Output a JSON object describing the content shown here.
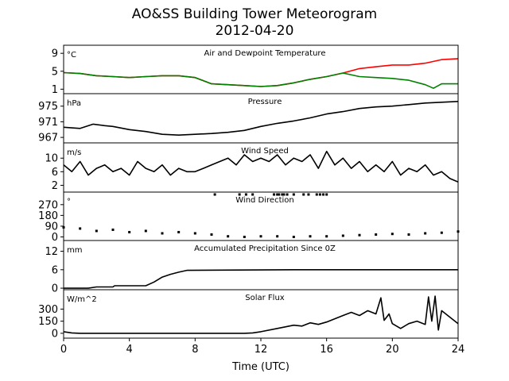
{
  "title": "AO&SS Building Tower Meteorogram",
  "subtitle": "2012-04-20",
  "xlabel": "Time (UTC)",
  "colors": {
    "temperature": "#ff0000",
    "dewpoint": "#008000",
    "line": "#000000"
  },
  "chart_data": [
    {
      "type": "line",
      "title": "Air and Dewpoint Temperature",
      "ylabel": "°C",
      "xlim": [
        0,
        24
      ],
      "x_ticks": [
        "0",
        "4",
        "8",
        "12",
        "16",
        "20",
        "24"
      ],
      "y_ticks": [
        1,
        5,
        9
      ],
      "ylim": [
        0,
        10.8
      ],
      "series": [
        {
          "name": "",
          "color": "#ff0000",
          "x": [
            0,
            1,
            2,
            3,
            4,
            5,
            6,
            7,
            8,
            9,
            10,
            11,
            12,
            13,
            14,
            15,
            16,
            17,
            18,
            19,
            20,
            21,
            22,
            23,
            24
          ],
          "y": [
            4.7,
            4.5,
            4.0,
            3.8,
            3.6,
            3.8,
            4.0,
            4.0,
            3.6,
            2.2,
            2.0,
            1.8,
            1.6,
            1.8,
            2.4,
            3.2,
            3.8,
            4.6,
            5.6,
            6.0,
            6.4,
            6.4,
            6.8,
            7.6,
            7.8
          ]
        },
        {
          "name": "",
          "color": "#008000",
          "x": [
            0,
            1,
            2,
            3,
            4,
            5,
            6,
            7,
            8,
            9,
            10,
            11,
            12,
            13,
            14,
            15,
            16,
            17,
            18,
            19,
            20,
            21,
            22,
            22.5,
            23,
            24
          ],
          "y": [
            4.7,
            4.5,
            4.0,
            3.8,
            3.6,
            3.8,
            4.0,
            4.0,
            3.6,
            2.2,
            2.0,
            1.8,
            1.6,
            1.8,
            2.4,
            3.2,
            3.8,
            4.6,
            3.8,
            3.6,
            3.4,
            3.0,
            2.0,
            1.2,
            2.2,
            2.2
          ]
        }
      ]
    },
    {
      "type": "line",
      "title": "Pressure",
      "ylabel": "hPa",
      "xlim": [
        0,
        24
      ],
      "y_ticks": [
        967,
        971,
        975
      ],
      "ylim": [
        965.6,
        978.2
      ],
      "series": [
        {
          "name": "",
          "color": "#000000",
          "x": [
            0,
            1,
            1.8,
            2.5,
            3,
            4,
            5,
            6,
            7,
            8,
            9,
            10,
            11,
            12,
            13,
            14,
            15,
            16,
            17,
            18,
            19,
            20,
            21,
            22,
            23,
            24
          ],
          "y": [
            969.6,
            969.3,
            970.4,
            970.0,
            969.8,
            969.0,
            968.5,
            967.8,
            967.6,
            967.8,
            968.0,
            968.3,
            968.8,
            969.8,
            970.6,
            971.2,
            972.0,
            973.0,
            973.6,
            974.4,
            974.8,
            975.0,
            975.4,
            975.8,
            976.0,
            976.2
          ]
        }
      ]
    },
    {
      "type": "line",
      "title": "Wind Speed",
      "ylabel": "m/s",
      "xlim": [
        0,
        24
      ],
      "y_ticks": [
        2,
        6,
        10
      ],
      "ylim": [
        0,
        14.5
      ],
      "series": [
        {
          "name": "",
          "color": "#000000",
          "x": [
            0,
            0.5,
            1,
            1.5,
            2,
            2.5,
            3,
            3.5,
            4,
            4.5,
            5,
            5.5,
            6,
            6.5,
            7,
            7.5,
            8,
            8.5,
            9,
            9.5,
            10,
            10.5,
            11,
            11.5,
            12,
            12.5,
            13,
            13.5,
            14,
            14.5,
            15,
            15.5,
            16,
            16.5,
            17,
            17.5,
            18,
            18.5,
            19,
            19.5,
            20,
            20.5,
            21,
            21.5,
            22,
            22.5,
            23,
            23.5,
            24
          ],
          "y": [
            8,
            6,
            9,
            5,
            7,
            8,
            6,
            7,
            5,
            9,
            7,
            6,
            8,
            5,
            7,
            6,
            6,
            7,
            8,
            9,
            10,
            8,
            11,
            9,
            10,
            9,
            11,
            8,
            10,
            9,
            11,
            7,
            12,
            8,
            10,
            7,
            9,
            6,
            8,
            6,
            9,
            5,
            7,
            6,
            8,
            5,
            6,
            4,
            3
          ]
        }
      ]
    },
    {
      "type": "scatter",
      "title": "Wind Direction",
      "ylabel": "°",
      "xlim": [
        0,
        24
      ],
      "y_ticks": [
        0,
        90,
        180,
        270
      ],
      "ylim": [
        -30,
        375
      ],
      "series": [
        {
          "name": "",
          "color": "#000000",
          "x": [
            0,
            1,
            2,
            3,
            4,
            5,
            6,
            7,
            8,
            9,
            10,
            11,
            12,
            13,
            14,
            15,
            16,
            17,
            18,
            19,
            20,
            21,
            22,
            23,
            24
          ],
          "y": [
            80,
            70,
            50,
            60,
            40,
            50,
            30,
            40,
            30,
            20,
            5,
            0,
            5,
            5,
            0,
            5,
            5,
            10,
            15,
            20,
            25,
            20,
            30,
            35,
            45
          ]
        },
        {
          "name": "",
          "color": "#000000",
          "x": [
            9.2,
            10.7,
            11.1,
            11.5,
            12.8,
            13.0,
            13.1,
            13.3,
            13.4,
            13.6,
            14.0,
            14.6,
            14.9,
            15.4,
            15.6,
            15.8,
            16.0
          ],
          "y": [
            355,
            355,
            355,
            355,
            355,
            355,
            355,
            355,
            355,
            355,
            355,
            355,
            355,
            355,
            355,
            355,
            355
          ]
        }
      ]
    },
    {
      "type": "line",
      "title": "Accumulated Precipitation Since 0Z",
      "ylabel": "mm",
      "xlim": [
        0,
        24
      ],
      "y_ticks": [
        0,
        6,
        12
      ],
      "ylim": [
        -0.5,
        15.5
      ],
      "series": [
        {
          "name": "",
          "color": "#000000",
          "x": [
            0,
            1.5,
            2,
            3,
            3.1,
            5,
            5.5,
            6,
            6.5,
            7,
            7.5,
            14,
            24
          ],
          "y": [
            0,
            0,
            0.4,
            0.4,
            0.8,
            0.8,
            2.0,
            3.6,
            4.5,
            5.2,
            5.8,
            6.0,
            6.0
          ]
        }
      ]
    },
    {
      "type": "line",
      "title": "Solar Flux",
      "ylabel": "W/m^2",
      "xlim": [
        0,
        24
      ],
      "y_ticks": [
        0,
        150,
        300
      ],
      "ylim": [
        -60,
        540
      ],
      "series": [
        {
          "name": "",
          "color": "#000000",
          "x": [
            0,
            0.5,
            1,
            11,
            11.5,
            12,
            13,
            14,
            14.5,
            15,
            15.5,
            16,
            16.5,
            17,
            17.5,
            18,
            18.5,
            19,
            19.3,
            19.5,
            19.8,
            20,
            20.5,
            21,
            21.5,
            22,
            22.2,
            22.4,
            22.6,
            22.8,
            23,
            23.5,
            24
          ],
          "y": [
            20,
            5,
            0,
            0,
            5,
            20,
            60,
            100,
            90,
            130,
            110,
            140,
            180,
            220,
            260,
            220,
            280,
            240,
            440,
            160,
            240,
            120,
            60,
            120,
            150,
            110,
            450,
            150,
            460,
            40,
            280,
            200,
            120
          ]
        }
      ]
    }
  ]
}
